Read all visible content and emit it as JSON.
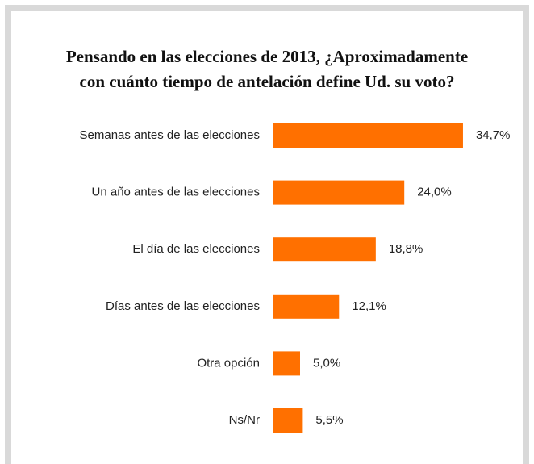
{
  "chart_data": {
    "type": "bar",
    "orientation": "horizontal",
    "title": [
      "Pensando en las elecciones de 2013, ¿Aproximadamente",
      "con cuánto tiempo de antelación define Ud. su voto?"
    ],
    "categories": [
      "Semanas antes de las elecciones",
      "Un año antes de las elecciones",
      "El día de las elecciones",
      "Días antes de las elecciones",
      "Otra opción",
      "Ns/Nr"
    ],
    "values": [
      34.7,
      24.0,
      18.8,
      12.1,
      5.0,
      5.5
    ],
    "value_labels": [
      "34,7%",
      "24,0%",
      "18,8%",
      "12,1%",
      "5,0%",
      "5,5%"
    ],
    "color": "#ff7000"
  }
}
